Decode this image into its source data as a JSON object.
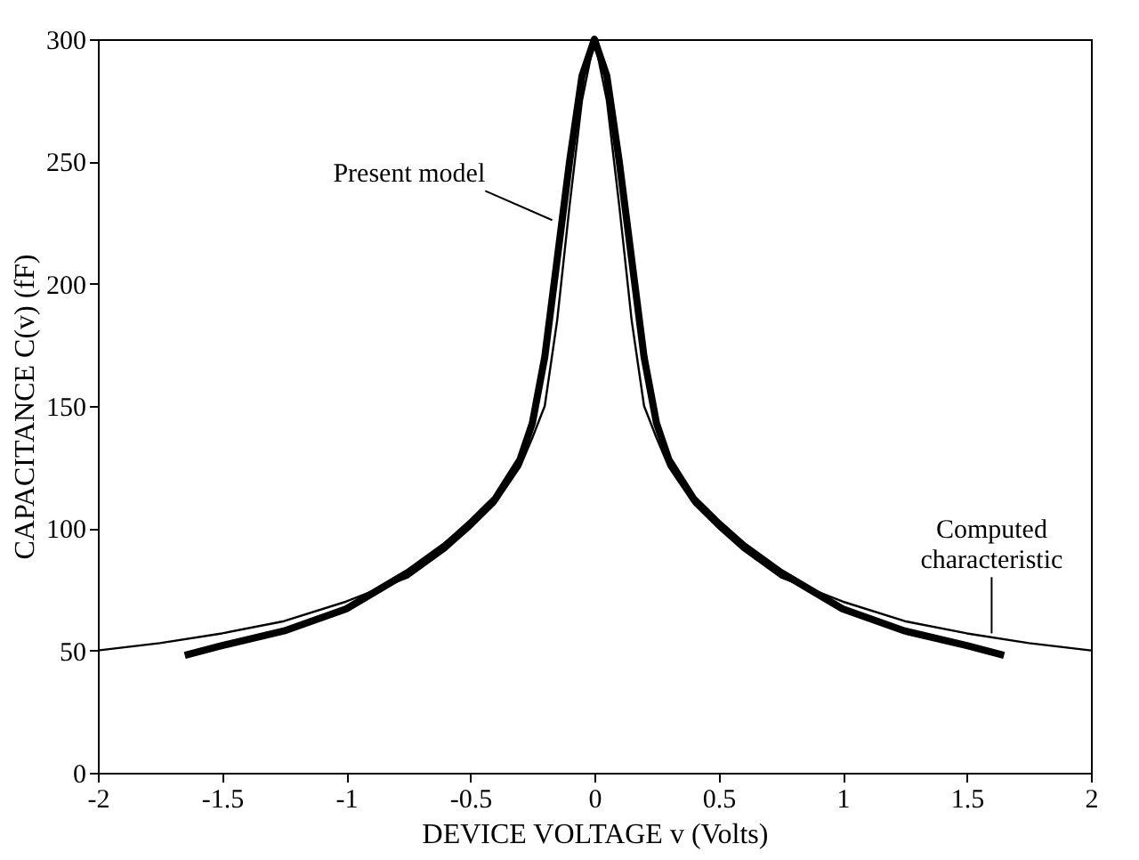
{
  "chart_data": {
    "type": "line",
    "xlabel": "DEVICE VOLTAGE v  (Volts)",
    "ylabel": "CAPACITANCE C(v)  (fF)",
    "xlim": [
      -2,
      2
    ],
    "xticks": [
      -2,
      -1.5,
      -1,
      -0.5,
      0,
      0.5,
      1,
      1.5,
      2
    ],
    "ylim": [
      0,
      300
    ],
    "yticks": [
      0,
      50,
      100,
      150,
      200,
      250,
      300
    ],
    "grid": false,
    "legend": false,
    "marker": "none",
    "line_style": "solid",
    "series": [
      {
        "color": "#000000",
        "x": [
          -2,
          -1.75,
          -1.5,
          -1.25,
          -1,
          -0.75,
          -0.6,
          -0.5,
          -0.4,
          -0.3,
          -0.25,
          -0.2,
          -0.15,
          -0.1,
          -0.05,
          0,
          0.05,
          0.1,
          0.15,
          0.2,
          0.25,
          0.3,
          0.4,
          0.5,
          0.6,
          0.75,
          1,
          1.25,
          1.5,
          1.75,
          2
        ],
        "values": [
          50,
          53,
          57,
          62,
          70,
          80,
          91,
          100,
          110,
          125,
          137,
          150,
          185,
          232,
          275,
          300,
          275,
          232,
          185,
          150,
          137,
          125,
          110,
          100,
          91,
          80,
          70,
          62,
          57,
          53,
          50
        ]
      },
      {
        "color": "#000000",
        "x": [
          -1.65,
          -1.5,
          -1.25,
          -1,
          -0.75,
          -0.6,
          -0.5,
          -0.4,
          -0.3,
          -0.25,
          -0.2,
          -0.15,
          -0.1,
          -0.05,
          0,
          0.05,
          0.1,
          0.15,
          0.2,
          0.25,
          0.3,
          0.4,
          0.5,
          0.6,
          0.75,
          1,
          1.25,
          1.5,
          1.65
        ],
        "values": [
          48,
          52,
          58,
          67,
          82,
          93,
          102,
          112,
          128,
          143,
          170,
          210,
          250,
          285,
          300,
          285,
          250,
          210,
          170,
          143,
          128,
          112,
          102,
          93,
          82,
          67,
          58,
          52,
          48
        ]
      }
    ],
    "annotations": [
      {
        "text": "Present model",
        "x": -0.17,
        "y": 226
      },
      {
        "text": "Computed\ncharacteristic",
        "x": 1.6,
        "y": 57
      }
    ]
  }
}
